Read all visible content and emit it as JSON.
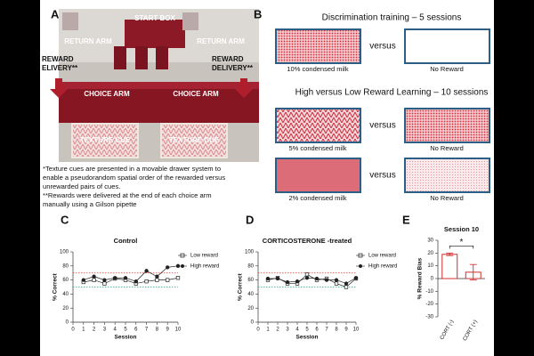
{
  "panel_a": {
    "label": "A",
    "photo_labels": {
      "start_box": "START BOX",
      "return_arm_left": "RETURN ARM",
      "return_arm_right": "RETURN ARM",
      "reward_left": [
        "REWARD",
        "ELIVERY**"
      ],
      "reward_right": [
        "REWARD",
        "DELIVERY**"
      ],
      "choice_arm_left": "CHOICE ARM",
      "choice_arm_right": "CHOICE ARM",
      "texture_cue_left": "TEXTURE CUE",
      "texture_cue_right": "TEXTURE CUE"
    },
    "notes": [
      "*Texture cues are presented in a movable drawer system to",
      "enable a pseudorandom spatial order of the rewarded versus",
      "unrewarded pairs of cues.",
      "**Rewards were delivered at the end of each choice arm",
      "manually using a Gilson pipette"
    ]
  },
  "panel_b": {
    "label": "B",
    "title_1": "Discrimination training – 5 sessions",
    "title_2": "High versus Low Reward Learning – 10 sessions",
    "rows": [
      {
        "left": "10% condensed milk",
        "versus": "versus",
        "right": "No Reward"
      },
      {
        "left": "5% condensed milk",
        "versus": "versus",
        "right": "No Reward"
      },
      {
        "left": "2% condensed milk",
        "versus": "versus",
        "right": "No Reward"
      }
    ]
  },
  "chart_data": [
    {
      "type": "line",
      "panel_label": "C",
      "title": "Control",
      "x_label": "Session",
      "y_label": "% Correct",
      "x": [
        1,
        2,
        3,
        4,
        5,
        6,
        7,
        8,
        9,
        10
      ],
      "xlim": [
        0,
        10
      ],
      "xticks": [
        0,
        1,
        2,
        3,
        4,
        5,
        6,
        7,
        8,
        9,
        10
      ],
      "ylim": [
        0,
        100
      ],
      "yticks": [
        0,
        20,
        40,
        60,
        80,
        100
      ],
      "reference_lines": [
        {
          "value": 70,
          "color": "#e05050"
        },
        {
          "value": 50,
          "color": "#30a878"
        }
      ],
      "series": [
        {
          "name": "Low reward",
          "color": "#222222",
          "marker": "square",
          "values": [
            57,
            60,
            55,
            62,
            60,
            55,
            58,
            60,
            60,
            63
          ]
        },
        {
          "name": "High reward",
          "color": "#222222",
          "marker": "circle",
          "values": [
            60,
            65,
            60,
            63,
            63,
            58,
            73,
            65,
            78,
            80
          ]
        }
      ]
    },
    {
      "type": "line",
      "panel_label": "D",
      "title": "CORTICOSTERONE -treated",
      "x_label": "Session",
      "y_label": "% Correct",
      "x": [
        1,
        2,
        3,
        4,
        5,
        6,
        7,
        8,
        9,
        10
      ],
      "xlim": [
        0,
        10
      ],
      "xticks": [
        0,
        1,
        2,
        3,
        4,
        5,
        6,
        7,
        8,
        9,
        10
      ],
      "ylim": [
        0,
        100
      ],
      "yticks": [
        0,
        20,
        40,
        60,
        80,
        100
      ],
      "reference_lines": [
        {
          "value": 70,
          "color": "#e05050"
        },
        {
          "value": 50,
          "color": "#30a878"
        }
      ],
      "series": [
        {
          "name": "Low reward",
          "color": "#222222",
          "marker": "square",
          "values": [
            60,
            63,
            55,
            55,
            68,
            60,
            62,
            55,
            50,
            62
          ]
        },
        {
          "name": "High reward",
          "color": "#222222",
          "marker": "circle",
          "values": [
            62,
            62,
            57,
            58,
            63,
            62,
            60,
            60,
            55,
            63
          ]
        }
      ]
    },
    {
      "type": "bar",
      "panel_label": "E",
      "title": "Session 10",
      "y_label": "% Reward Bias",
      "categories": [
        "CORT (-)",
        "CORT (+)"
      ],
      "values": [
        19,
        5
      ],
      "errors": [
        1,
        6
      ],
      "color": "#d03030",
      "ylim": [
        -30,
        30
      ],
      "yticks": [
        -30,
        -20,
        -10,
        0,
        10,
        20,
        30
      ],
      "significance": "*"
    }
  ]
}
